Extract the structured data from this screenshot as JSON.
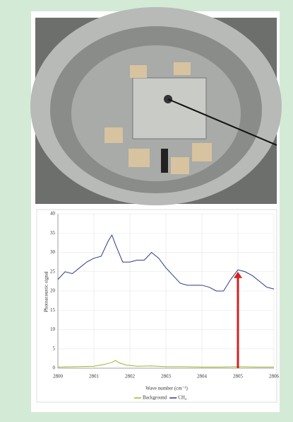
{
  "chart_data": {
    "type": "line",
    "ylabel": "Photoacoustic signal",
    "xlabel": "Wave number (cm⁻¹)",
    "xlim": [
      2800,
      2806
    ],
    "xticks": [
      2800,
      2801,
      2802,
      2803,
      2804,
      2805,
      2806
    ],
    "ylim": [
      0,
      40
    ],
    "yticks": [
      0,
      5,
      10,
      15,
      20,
      25,
      30,
      35,
      40
    ],
    "grid": true,
    "series": [
      {
        "name": "Background",
        "color": "#9ab82e",
        "x": [
          2800,
          2800.5,
          2801,
          2801.3,
          2801.5,
          2801.6,
          2801.7,
          2801.9,
          2802.2,
          2802.6,
          2803,
          2803.5,
          2804,
          2804.5,
          2805,
          2805.5,
          2806
        ],
        "values": [
          0.3,
          0.4,
          0.5,
          1,
          1.5,
          2,
          1.4,
          0.8,
          0.5,
          0.6,
          0.4,
          0.4,
          0.3,
          0.3,
          0.4,
          0.3,
          0.3
        ]
      },
      {
        "name": "CH₄",
        "color": "#2c3a86",
        "x": [
          2800,
          2800.2,
          2800.4,
          2800.6,
          2800.8,
          2801,
          2801.2,
          2801.4,
          2801.5,
          2801.6,
          2801.8,
          2802,
          2802.2,
          2802.4,
          2802.6,
          2802.8,
          2803,
          2803.2,
          2803.4,
          2803.6,
          2803.8,
          2804,
          2804.2,
          2804.4,
          2804.6,
          2804.8,
          2805,
          2805.2,
          2805.4,
          2805.6,
          2805.8,
          2806
        ],
        "values": [
          23,
          25,
          24.5,
          26,
          27.5,
          28.5,
          29,
          33,
          34.5,
          32,
          27.5,
          27.5,
          28,
          28,
          30,
          28.5,
          26,
          24,
          22,
          21.5,
          21.5,
          21.5,
          21,
          20,
          20,
          23,
          25.5,
          25,
          24,
          22.5,
          21,
          20.5
        ]
      }
    ],
    "arrow": {
      "color": "#d42020",
      "x": 2805,
      "from": 0,
      "to": 25
    }
  }
}
